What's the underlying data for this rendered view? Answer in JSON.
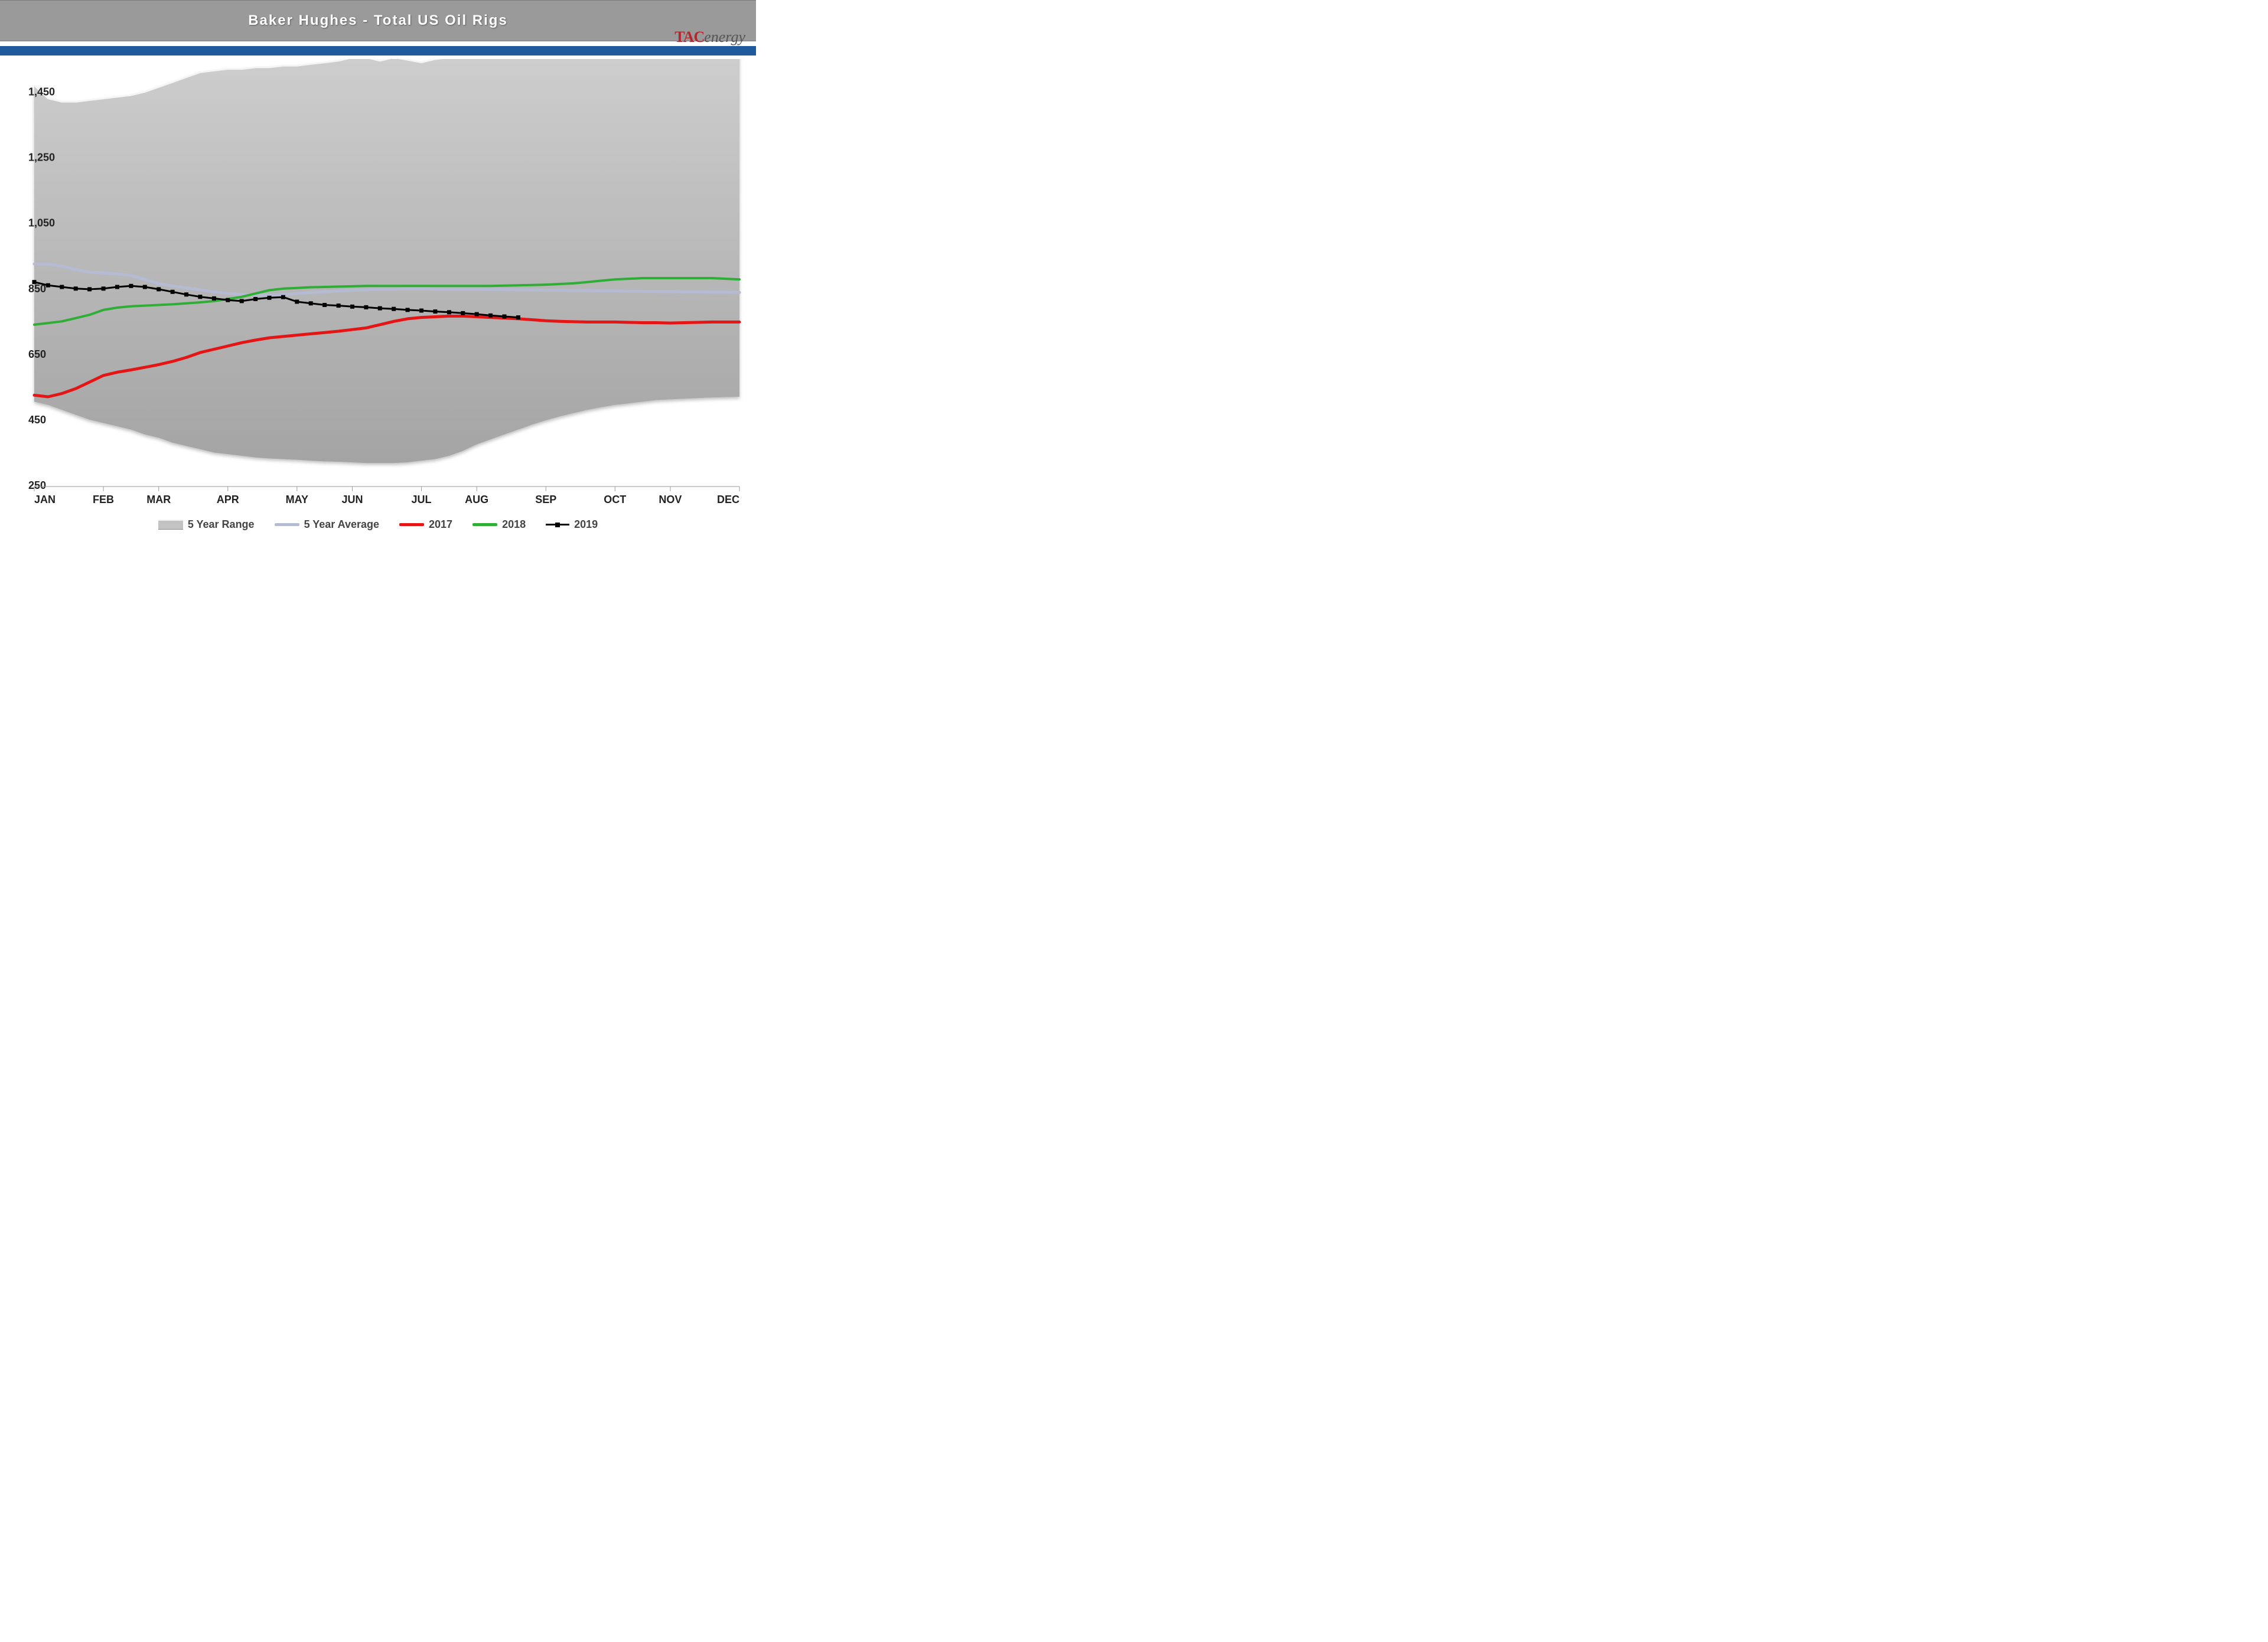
{
  "title": "Baker Hughes - Total US Oil Rigs",
  "logo": {
    "brand_left": "TAC",
    "brand_right": "energy",
    "color_left": "#b3282d",
    "color_right": "#555555"
  },
  "colors": {
    "title_bar_bg": "#9a9a9a",
    "title_text": "#ffffff",
    "blue_bar": "#1f5a9e",
    "background": "#ffffff",
    "range_fill": "#b5b5b5",
    "range_fill_gradient_top": "#cfcfcf",
    "range_fill_gradient_bottom": "#a8a8a8",
    "range_edge_highlight": "#f5f5f5",
    "axis_text": "#222222",
    "series_5yr_avg": "#b6bbd4",
    "series_2017": "#e51515",
    "series_2018": "#2eae35",
    "series_2019_line": "#000000",
    "series_2019_marker": "#000000"
  },
  "chart": {
    "type": "line-with-range-band",
    "x_categories": [
      "JAN",
      "FEB",
      "MAR",
      "APR",
      "MAY",
      "JUN",
      "JUL",
      "AUG",
      "SEP",
      "OCT",
      "NOV",
      "DEC"
    ],
    "x_weeks": 52,
    "ylim": [
      250,
      1550
    ],
    "y_ticks": [
      250,
      450,
      650,
      850,
      1050,
      1250,
      1450
    ],
    "y_tick_labels": [
      "250",
      "450",
      "650",
      "850",
      "1,050",
      "1,250",
      "1,450"
    ],
    "axis_fontsize": 18,
    "axis_fontweight": "bold",
    "line_width_main": 4,
    "line_width_2019": 3,
    "marker_size_2019": 7,
    "range_upper": [
      1470,
      1430,
      1420,
      1420,
      1425,
      1430,
      1435,
      1440,
      1450,
      1465,
      1480,
      1495,
      1510,
      1515,
      1520,
      1520,
      1525,
      1525,
      1530,
      1530,
      1535,
      1540,
      1545,
      1555,
      1555,
      1545,
      1555,
      1548,
      1540,
      1550,
      1555,
      1555,
      1555,
      1556,
      1558,
      1560,
      1562,
      1566,
      1570,
      1580,
      1590,
      1600,
      1602,
      1604,
      1606,
      1608,
      1609,
      1605,
      1590,
      1575,
      1570,
      1565
    ],
    "range_lower": [
      505,
      495,
      480,
      465,
      450,
      440,
      430,
      420,
      405,
      395,
      380,
      370,
      360,
      350,
      345,
      340,
      335,
      332,
      330,
      328,
      325,
      323,
      322,
      320,
      318,
      318,
      318,
      320,
      325,
      330,
      340,
      355,
      375,
      390,
      405,
      420,
      435,
      448,
      460,
      470,
      480,
      488,
      495,
      500,
      505,
      510,
      512,
      514,
      516,
      518,
      519,
      520
    ],
    "series": {
      "five_yr_avg": {
        "label": "5 Year Average",
        "color": "#b6bbd4",
        "values": [
          925,
          925,
          918,
          908,
          900,
          898,
          895,
          890,
          878,
          865,
          858,
          852,
          846,
          840,
          835,
          832,
          830,
          830,
          832,
          835,
          838,
          840,
          843,
          845,
          846,
          848,
          848,
          849,
          849,
          848,
          848,
          848,
          848,
          847,
          847,
          846,
          846,
          845,
          845,
          844,
          844,
          843,
          843,
          842,
          842,
          841,
          841,
          840,
          840,
          839,
          839,
          838
        ]
      },
      "y2017": {
        "label": "2017",
        "color": "#e51515",
        "values": [
          525,
          520,
          530,
          545,
          565,
          585,
          595,
          602,
          610,
          618,
          628,
          640,
          655,
          665,
          675,
          685,
          693,
          700,
          704,
          708,
          712,
          716,
          720,
          725,
          730,
          740,
          750,
          758,
          762,
          764,
          766,
          766,
          764,
          762,
          760,
          758,
          755,
          752,
          750,
          749,
          748,
          748,
          748,
          747,
          746,
          746,
          745,
          746,
          747,
          748,
          748,
          748
        ]
      },
      "y2018": {
        "label": "2018",
        "color": "#2eae35",
        "values": [
          740,
          745,
          750,
          760,
          770,
          785,
          792,
          796,
          798,
          800,
          802,
          805,
          808,
          812,
          818,
          825,
          835,
          845,
          850,
          852,
          854,
          855,
          856,
          857,
          858,
          858,
          858,
          858,
          858,
          858,
          858,
          858,
          858,
          858,
          859,
          860,
          861,
          862,
          864,
          866,
          870,
          874,
          878,
          880,
          882,
          882,
          882,
          882,
          882,
          882,
          880,
          878
        ]
      },
      "y2019": {
        "label": "2019",
        "color": "#000000",
        "has_markers": true,
        "values": [
          870,
          860,
          855,
          850,
          848,
          850,
          855,
          858,
          855,
          848,
          840,
          832,
          825,
          820,
          815,
          812,
          818,
          822,
          824,
          810,
          805,
          800,
          798,
          795,
          793,
          790,
          788,
          785,
          783,
          780,
          778,
          775,
          772,
          768,
          765,
          762
        ]
      }
    },
    "legend_order": [
      "range",
      "five_yr_avg",
      "y2017",
      "y2018",
      "y2019"
    ],
    "legend_labels": {
      "range": "5 Year Range",
      "five_yr_avg": "5 Year Average",
      "y2017": "2017",
      "y2018": "2018",
      "y2019": "2019"
    }
  }
}
